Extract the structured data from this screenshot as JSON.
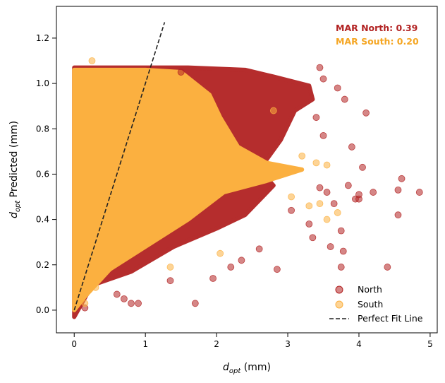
{
  "chart_data": {
    "type": "scatter",
    "title": "",
    "xlabel_main": "d",
    "xlabel_sub": "opt",
    "xlabel_unit": " (mm)",
    "ylabel_main": "d",
    "ylabel_sub": "opt",
    "ylabel_unit": " Predicted (mm)",
    "xlim": [
      -0.25,
      5.1
    ],
    "ylim": [
      -0.1,
      1.34
    ],
    "xticks": [
      0,
      1,
      2,
      3,
      4,
      5
    ],
    "yticks": [
      0.0,
      0.2,
      0.4,
      0.6,
      0.8,
      1.0,
      1.2
    ],
    "xtick_labels": [
      "0",
      "1",
      "2",
      "3",
      "4",
      "5"
    ],
    "ytick_labels": [
      "0.0",
      "0.2",
      "0.4",
      "0.6",
      "0.8",
      "1.0",
      "1.2"
    ],
    "grid": false,
    "legend_position": "bottom-right",
    "annotations": [
      {
        "text": "MAR North: 0.39",
        "color": "#b22222"
      },
      {
        "text": "MAR South: 0.20",
        "color": "#f5a623"
      }
    ],
    "perfect_fit_line": {
      "x": [
        0,
        1.27
      ],
      "y": [
        0,
        1.27
      ]
    },
    "series": [
      {
        "name": "North",
        "color": "#b22222",
        "marker": "circle",
        "alpha": 0.55,
        "values": [
          [
            4.85,
            0.52
          ],
          [
            4.6,
            0.58
          ],
          [
            4.55,
            0.53
          ],
          [
            4.55,
            0.42
          ],
          [
            4.4,
            0.19
          ],
          [
            4.2,
            0.52
          ],
          [
            4.1,
            0.87
          ],
          [
            4.05,
            0.63
          ],
          [
            4.0,
            0.51
          ],
          [
            4.0,
            0.49
          ],
          [
            3.95,
            0.49
          ],
          [
            3.9,
            0.72
          ],
          [
            3.85,
            0.55
          ],
          [
            3.8,
            0.93
          ],
          [
            3.75,
            0.35
          ],
          [
            3.78,
            0.26
          ],
          [
            3.75,
            0.19
          ],
          [
            3.7,
            0.98
          ],
          [
            3.65,
            0.47
          ],
          [
            3.6,
            0.28
          ],
          [
            3.55,
            0.52
          ],
          [
            3.5,
            0.77
          ],
          [
            3.45,
            0.54
          ],
          [
            3.4,
            0.85
          ],
          [
            3.35,
            0.32
          ],
          [
            3.3,
            0.38
          ],
          [
            2.85,
            0.18
          ],
          [
            2.6,
            0.27
          ],
          [
            3.05,
            0.44
          ],
          [
            1.7,
            0.03
          ],
          [
            0.8,
            0.03
          ],
          [
            0.9,
            0.03
          ],
          [
            0.7,
            0.05
          ],
          [
            0.6,
            0.07
          ],
          [
            0.15,
            0.01
          ],
          [
            1.35,
            0.13
          ],
          [
            1.95,
            0.14
          ],
          [
            2.2,
            0.19
          ],
          [
            2.35,
            0.22
          ],
          [
            3.5,
            1.02
          ],
          [
            3.45,
            1.07
          ],
          [
            1.5,
            1.05
          ]
        ]
      },
      {
        "name": "South",
        "color": "#fbb040",
        "marker": "circle",
        "alpha": 0.55,
        "values": [
          [
            3.7,
            0.43
          ],
          [
            3.55,
            0.4
          ],
          [
            3.45,
            0.47
          ],
          [
            3.3,
            0.46
          ],
          [
            3.55,
            0.64
          ],
          [
            3.4,
            0.65
          ],
          [
            3.2,
            0.68
          ],
          [
            2.8,
            0.88
          ],
          [
            3.05,
            0.5
          ],
          [
            2.05,
            0.25
          ],
          [
            1.35,
            0.19
          ],
          [
            0.3,
            0.1
          ],
          [
            0.25,
            1.1
          ],
          [
            0.15,
            0.03
          ]
        ]
      }
    ],
    "density_bands": [
      {
        "series": "North",
        "points": [
          [
            0,
            1.07
          ],
          [
            1.6,
            1.07
          ],
          [
            2.4,
            1.06
          ],
          [
            2.8,
            1.03
          ],
          [
            3.3,
            0.99
          ],
          [
            3.35,
            0.93
          ],
          [
            3.1,
            0.88
          ],
          [
            2.9,
            0.75
          ],
          [
            2.6,
            0.62
          ],
          [
            2.8,
            0.55
          ],
          [
            2.4,
            0.42
          ],
          [
            2.0,
            0.36
          ],
          [
            1.4,
            0.28
          ],
          [
            0.8,
            0.17
          ],
          [
            0.25,
            0.11
          ],
          [
            0,
            -0.03
          ]
        ]
      },
      {
        "series": "South",
        "points": [
          [
            0,
            1.06
          ],
          [
            1.0,
            1.06
          ],
          [
            1.5,
            1.05
          ],
          [
            1.9,
            0.95
          ],
          [
            2.05,
            0.85
          ],
          [
            2.3,
            0.72
          ],
          [
            2.7,
            0.65
          ],
          [
            3.2,
            0.62
          ],
          [
            2.7,
            0.57
          ],
          [
            2.1,
            0.52
          ],
          [
            1.6,
            0.4
          ],
          [
            1.0,
            0.28
          ],
          [
            0.5,
            0.18
          ],
          [
            0.15,
            0.06
          ],
          [
            0,
            0.0
          ]
        ]
      }
    ],
    "legend": [
      {
        "label": "North",
        "kind": "marker",
        "color": "#b22222"
      },
      {
        "label": "South",
        "kind": "marker",
        "color": "#fbb040"
      },
      {
        "label": "Perfect Fit Line",
        "kind": "dashed-line",
        "color": "#222222"
      }
    ]
  }
}
